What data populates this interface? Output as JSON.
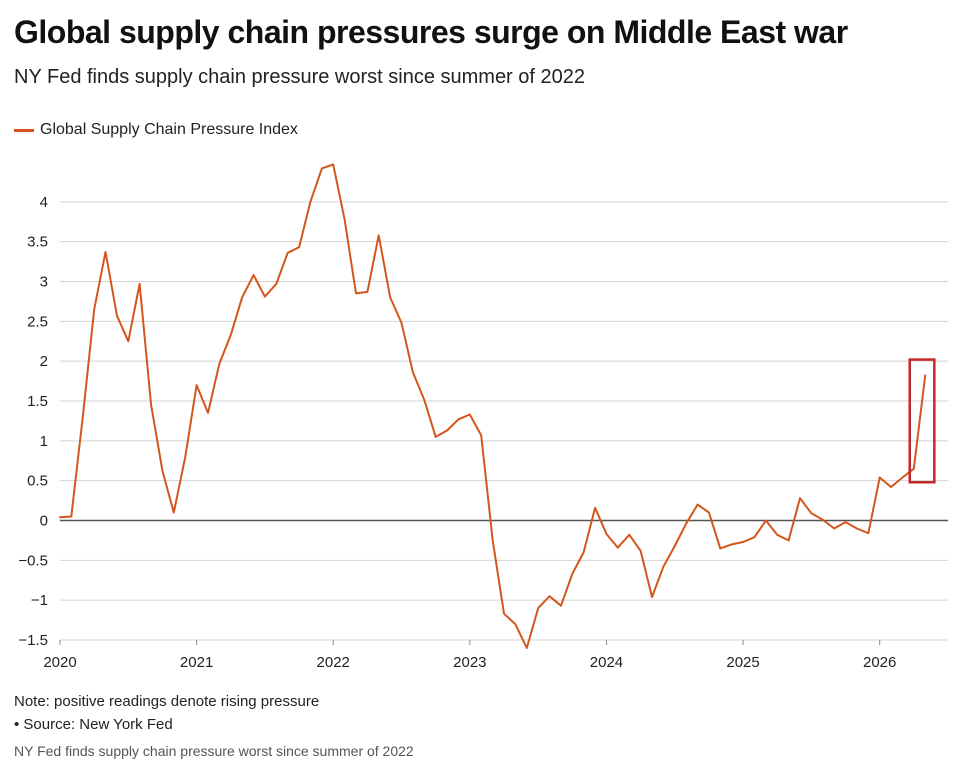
{
  "header": {
    "title": "Global supply chain pressures surge on Middle East war",
    "subtitle": "NY Fed finds supply chain pressure worst since summer of 2022"
  },
  "footer": {
    "note": "Note: positive readings denote rising pressure",
    "source": "• Source: New York Fed",
    "caption": "NY Fed finds supply chain pressure worst since summer of 2022"
  },
  "colors": {
    "series": "#d4561c",
    "highlight": "#c62828",
    "grid": "#d4d4d4",
    "zero_line": "#555555"
  },
  "chart_data": {
    "type": "line",
    "title": "Global supply chain pressures surge on Middle East war",
    "subtitle": "NY Fed finds supply chain pressure worst since summer of 2022",
    "xlabel": "",
    "ylabel": "",
    "xlim": [
      2020.0,
      2026.5
    ],
    "ylim": [
      -1.5,
      4.5
    ],
    "x_ticks": [
      2020,
      2021,
      2022,
      2023,
      2024,
      2025,
      2026
    ],
    "x_tick_labels": [
      "2020",
      "2021",
      "2022",
      "2023",
      "2024",
      "2025",
      "2026"
    ],
    "y_ticks": [
      -1.5,
      -1,
      -0.5,
      0,
      0.5,
      1,
      1.5,
      2,
      2.5,
      3,
      3.5,
      4
    ],
    "y_tick_labels": [
      "−1.5",
      "−1",
      "−0.5",
      "0",
      "0.5",
      "1",
      "1.5",
      "2",
      "2.5",
      "3",
      "3.5",
      "4"
    ],
    "grid": true,
    "legend": "top-left",
    "highlight_box": {
      "x_range": [
        2026.22,
        2026.4
      ],
      "y_range": [
        0.48,
        2.02
      ]
    },
    "series": [
      {
        "name": "Global Supply Chain Pressure Index",
        "color": "#d4561c",
        "x": [
          2020.0,
          2020.083,
          2020.167,
          2020.25,
          2020.333,
          2020.417,
          2020.5,
          2020.583,
          2020.667,
          2020.75,
          2020.833,
          2020.917,
          2021.0,
          2021.083,
          2021.167,
          2021.25,
          2021.333,
          2021.417,
          2021.5,
          2021.583,
          2021.667,
          2021.75,
          2021.833,
          2021.917,
          2022.0,
          2022.083,
          2022.167,
          2022.25,
          2022.333,
          2022.417,
          2022.5,
          2022.583,
          2022.667,
          2022.75,
          2022.833,
          2022.917,
          2023.0,
          2023.083,
          2023.167,
          2023.25,
          2023.333,
          2023.417,
          2023.5,
          2023.583,
          2023.667,
          2023.75,
          2023.833,
          2023.917,
          2024.0,
          2024.083,
          2024.167,
          2024.25,
          2024.333,
          2024.417,
          2024.5,
          2024.583,
          2024.667,
          2024.75,
          2024.833,
          2024.917,
          2025.0,
          2025.083,
          2025.167,
          2025.25,
          2025.333,
          2025.417,
          2025.5,
          2025.583,
          2025.667,
          2025.75,
          2025.833,
          2025.917,
          2026.0,
          2026.083,
          2026.167,
          2026.25,
          2026.333
        ],
        "y": [
          0.04,
          0.05,
          1.3,
          2.65,
          3.37,
          2.57,
          2.25,
          2.97,
          1.45,
          0.62,
          0.1,
          0.8,
          1.7,
          1.35,
          1.97,
          2.33,
          2.8,
          3.08,
          2.81,
          2.97,
          3.36,
          3.43,
          4.0,
          4.42,
          4.47,
          3.78,
          2.85,
          2.87,
          3.58,
          2.8,
          2.48,
          1.86,
          1.51,
          1.05,
          1.13,
          1.27,
          1.33,
          1.07,
          -0.25,
          -1.17,
          -1.3,
          -1.6,
          -1.1,
          -0.95,
          -1.07,
          -0.67,
          -0.4,
          0.16,
          -0.17,
          -0.34,
          -0.18,
          -0.38,
          -0.96,
          -0.58,
          -0.32,
          -0.04,
          0.2,
          0.1,
          -0.35,
          -0.3,
          -0.27,
          -0.21,
          0.0,
          -0.18,
          -0.25,
          0.28,
          0.09,
          0.01,
          -0.1,
          -0.02,
          -0.1,
          -0.16,
          0.54,
          0.42,
          0.54,
          0.65,
          1.82
        ]
      }
    ]
  }
}
